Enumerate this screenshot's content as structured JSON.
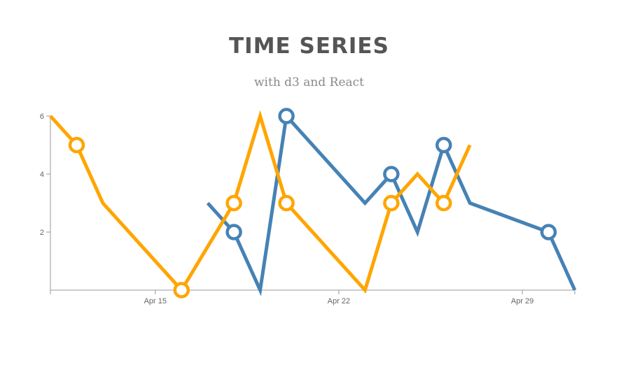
{
  "header": {
    "title": "TIME SERIES",
    "subtitle": "with d3 and React"
  },
  "chart_data": {
    "type": "line",
    "title": "TIME SERIES",
    "subtitle": "with d3 and React",
    "xlabel": "",
    "ylabel": "",
    "xlim": [
      "2016-04-11",
      "2016-05-01"
    ],
    "ylim": [
      0,
      6
    ],
    "x_ticks": [
      {
        "date": "2016-04-15",
        "label": "Apr 15"
      },
      {
        "date": "2016-04-22",
        "label": "Apr 22"
      },
      {
        "date": "2016-04-29",
        "label": "Apr 29"
      }
    ],
    "y_ticks": [
      {
        "value": 2,
        "label": "2"
      },
      {
        "value": 4,
        "label": "4"
      },
      {
        "value": 6,
        "label": "6"
      }
    ],
    "grid": false,
    "series": [
      {
        "color": "#4682b4",
        "points": [
          {
            "date": "2016-04-17",
            "value": 3,
            "marker": false
          },
          {
            "date": "2016-04-18",
            "value": 2,
            "marker": true
          },
          {
            "date": "2016-04-19",
            "value": 0,
            "marker": false
          },
          {
            "date": "2016-04-20",
            "value": 6,
            "marker": true
          },
          {
            "date": "2016-04-23",
            "value": 3,
            "marker": false
          },
          {
            "date": "2016-04-24",
            "value": 4,
            "marker": true
          },
          {
            "date": "2016-04-25",
            "value": 2,
            "marker": false
          },
          {
            "date": "2016-04-26",
            "value": 5,
            "marker": true
          },
          {
            "date": "2016-04-27",
            "value": 3,
            "marker": false
          },
          {
            "date": "2016-04-30",
            "value": 2,
            "marker": true
          },
          {
            "date": "2016-05-01",
            "value": 0,
            "marker": false
          }
        ]
      },
      {
        "color": "#ffa500",
        "points": [
          {
            "date": "2016-04-11",
            "value": 6,
            "marker": false
          },
          {
            "date": "2016-04-12",
            "value": 5,
            "marker": true
          },
          {
            "date": "2016-04-13",
            "value": 3,
            "marker": false
          },
          {
            "date": "2016-04-16",
            "value": 0,
            "marker": true
          },
          {
            "date": "2016-04-18",
            "value": 3,
            "marker": true
          },
          {
            "date": "2016-04-19",
            "value": 6,
            "marker": false
          },
          {
            "date": "2016-04-20",
            "value": 3,
            "marker": true
          },
          {
            "date": "2016-04-23",
            "value": 0,
            "marker": false
          },
          {
            "date": "2016-04-24",
            "value": 3,
            "marker": true
          },
          {
            "date": "2016-04-25",
            "value": 4,
            "marker": false
          },
          {
            "date": "2016-04-26",
            "value": 3,
            "marker": true
          },
          {
            "date": "2016-04-27",
            "value": 5,
            "marker": false
          }
        ]
      }
    ]
  }
}
